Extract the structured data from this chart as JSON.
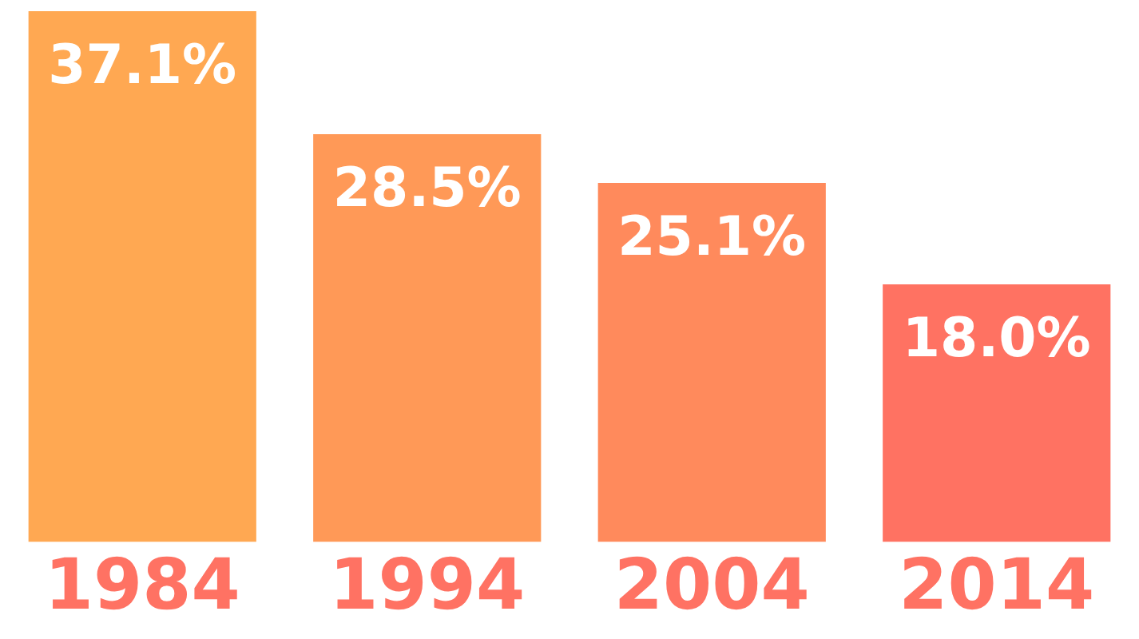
{
  "chart_data": {
    "type": "bar",
    "categories": [
      "1984",
      "1994",
      "2004",
      "2014"
    ],
    "values": [
      37.1,
      28.5,
      25.1,
      18.0
    ],
    "colors": [
      "#ffa852",
      "#ff9957",
      "#ff8a5c",
      "#ff7262"
    ],
    "value_labels": [
      "37.1%",
      "28.5%",
      "25.1%",
      "18.0%"
    ]
  }
}
